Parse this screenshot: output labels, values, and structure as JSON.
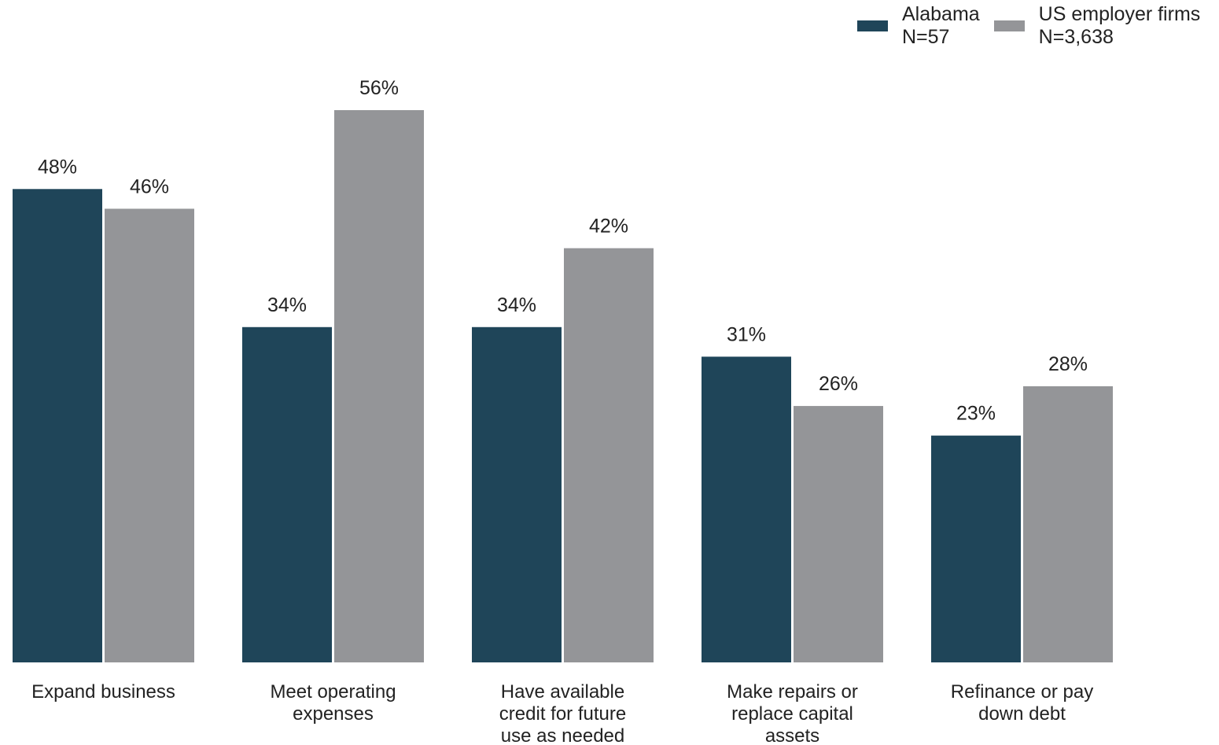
{
  "colors": {
    "alabama": "#1f4559",
    "us": "#949598"
  },
  "legend": {
    "items": [
      {
        "name": "Alabama",
        "n": "N=57",
        "color": "#1f4559"
      },
      {
        "name": "US employer firms",
        "n": "N=3,638",
        "color": "#949598"
      }
    ]
  },
  "chart_data": {
    "type": "bar",
    "categories": [
      [
        "Expand business"
      ],
      [
        "Meet operating",
        "expenses"
      ],
      [
        "Have available",
        "credit for future",
        "use as needed"
      ],
      [
        "Make repairs or",
        "replace capital",
        "assets"
      ],
      [
        "Refinance or pay",
        "down debt"
      ]
    ],
    "series": [
      {
        "name": "Alabama",
        "values": [
          48,
          34,
          34,
          31,
          23
        ],
        "labels": [
          "48%",
          "34%",
          "34%",
          "31%",
          "23%"
        ]
      },
      {
        "name": "US employer firms",
        "values": [
          46,
          56,
          42,
          26,
          28
        ],
        "labels": [
          "46%",
          "56%",
          "42%",
          "26%",
          "28%"
        ]
      }
    ],
    "ylim": [
      0,
      56
    ],
    "grid": false,
    "legend_position": "top-right"
  }
}
